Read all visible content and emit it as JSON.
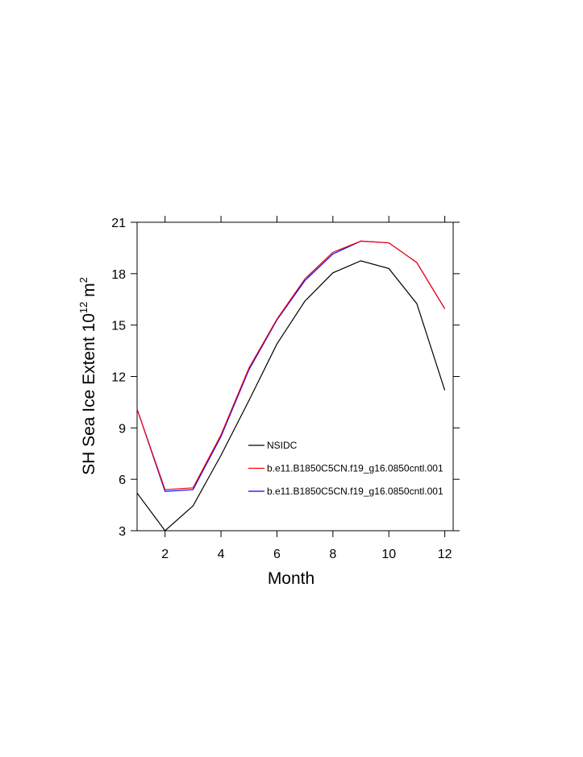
{
  "chart_data": {
    "type": "line",
    "ylabel_parts": [
      "SH Sea Ice Extent 10",
      "12",
      " m",
      "2"
    ],
    "xlabel": "Month",
    "x": [
      1,
      2,
      3,
      4,
      5,
      6,
      7,
      8,
      9,
      10,
      11,
      12
    ],
    "series": [
      {
        "name": "NSIDC",
        "color": "#000000",
        "values": [
          5.2,
          3.0,
          4.45,
          7.4,
          10.6,
          13.9,
          16.4,
          18.05,
          18.75,
          18.3,
          16.25,
          11.2
        ]
      },
      {
        "name": "b.e11.B1850C5CN.f19_g16.0850cntl.001",
        "color": "#ff0000",
        "values": [
          10.1,
          5.4,
          5.5,
          8.6,
          12.5,
          15.35,
          17.7,
          19.25,
          19.9,
          19.8,
          18.65,
          15.95
        ]
      },
      {
        "name": "b.e11.B1850C5CN.f19_g16.0850cntl.001",
        "color": "#0000ff",
        "values": [
          10.1,
          5.3,
          5.4,
          8.5,
          12.4,
          15.3,
          17.6,
          19.15,
          19.9,
          19.8,
          18.65,
          15.95
        ]
      }
    ],
    "xlim": [
      1,
      12.3
    ],
    "xticks": [
      2,
      4,
      6,
      8,
      10,
      12
    ],
    "ylim": [
      3,
      21
    ],
    "yticks": [
      3,
      6,
      9,
      12,
      15,
      18,
      21
    ],
    "legend": "lower-right"
  }
}
